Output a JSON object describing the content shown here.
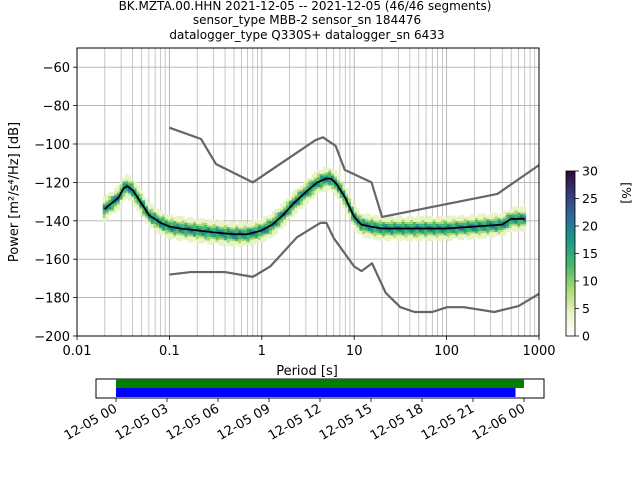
{
  "chart_data": [
    {
      "type": "heatmap",
      "title_lines": [
        "BK.MZTA.00.HHN   2021-12-05 -- 2021-12-05  (46/46 segments)",
        "sensor_type MBB-2 sensor_sn 184476",
        "datalogger_type Q330S+ datalogger_sn 6433"
      ],
      "xlabel": "Period [s]",
      "ylabel": "Power [m²/s⁴/Hz] [dB]",
      "x_scale": "log",
      "xlim": [
        0.01,
        1000
      ],
      "ylim": [
        -200,
        -50
      ],
      "x_ticks": [
        {
          "value": 0.01,
          "label": "0.01"
        },
        {
          "value": 0.1,
          "label": "0.1"
        },
        {
          "value": 1,
          "label": "1"
        },
        {
          "value": 10,
          "label": "10"
        },
        {
          "value": 100,
          "label": "100"
        },
        {
          "value": 1000,
          "label": "1000"
        }
      ],
      "y_ticks": [
        {
          "value": -60,
          "label": "−60"
        },
        {
          "value": -80,
          "label": "−80"
        },
        {
          "value": -100,
          "label": "−100"
        },
        {
          "value": -120,
          "label": "−120"
        },
        {
          "value": -140,
          "label": "−140"
        },
        {
          "value": -160,
          "label": "−160"
        },
        {
          "value": -180,
          "label": "−180"
        },
        {
          "value": -200,
          "label": "−200"
        }
      ],
      "grid": true,
      "colorbar": {
        "label": "[%]",
        "range": [
          0,
          30
        ],
        "ticks": [
          {
            "value": 0,
            "label": "0"
          },
          {
            "value": 5,
            "label": "5"
          },
          {
            "value": 10,
            "label": "10"
          },
          {
            "value": 15,
            "label": "15"
          },
          {
            "value": 20,
            "label": "20"
          },
          {
            "value": 25,
            "label": "25"
          },
          {
            "value": 30,
            "label": "30"
          }
        ],
        "colors": [
          "#ffffff",
          "#e8f3c6",
          "#a9d873",
          "#4cb66a",
          "#1c9b87",
          "#2c6e9c",
          "#383b7c",
          "#2d0a3a"
        ]
      },
      "series": [
        {
          "role": "mean",
          "color": "#000000",
          "x": [
            0.02,
            0.022,
            0.025,
            0.028,
            0.032,
            0.035,
            0.04,
            0.05,
            0.06,
            0.08,
            0.1,
            0.13,
            0.2,
            0.3,
            0.5,
            0.7,
            1.0,
            1.3,
            1.7,
            2.2,
            3.0,
            4.0,
            5.0,
            5.6,
            6.5,
            8,
            10,
            12,
            15,
            20,
            30,
            50,
            70,
            100,
            200,
            400,
            500,
            700
          ],
          "y": [
            -134,
            -132,
            -130,
            -128,
            -123,
            -122,
            -124,
            -131,
            -137,
            -141,
            -143,
            -144,
            -145,
            -146,
            -147,
            -147,
            -145,
            -142,
            -137,
            -131,
            -125,
            -120,
            -118,
            -118,
            -121,
            -128,
            -138,
            -142,
            -143,
            -144,
            -144,
            -144,
            -144,
            -144,
            -143,
            -142,
            -139,
            -139
          ]
        },
        {
          "role": "high-noise-model",
          "color": "#666666",
          "x": [
            0.1,
            0.22,
            0.32,
            0.8,
            3.8,
            4.6,
            6.3,
            7.9,
            15.4,
            20,
            354.8,
            1000
          ],
          "y": [
            -91.5,
            -97.4,
            -110.5,
            -120,
            -98,
            -96.5,
            -101,
            -113.5,
            -120,
            -138,
            -126,
            -111
          ]
        },
        {
          "role": "low-noise-model",
          "color": "#666666",
          "x": [
            0.1,
            0.17,
            0.4,
            0.8,
            1.24,
            2.4,
            4.3,
            5,
            6,
            10,
            12,
            15.6,
            21.9,
            31.6,
            45,
            70,
            101,
            154,
            328,
            600,
            1000
          ],
          "y": [
            -168,
            -166.7,
            -166.7,
            -169.2,
            -163.7,
            -148.6,
            -141.1,
            -141.1,
            -149,
            -163.8,
            -166.2,
            -162.1,
            -177.5,
            -185,
            -187.5,
            -187.5,
            -185,
            -185,
            -187.5,
            -184.4,
            -178
          ]
        }
      ]
    },
    {
      "type": "timeline",
      "x_ticks": [
        "12-05 00",
        "12-05 03",
        "12-05 06",
        "12-05 09",
        "12-05 12",
        "12-05 15",
        "12-05 18",
        "12-05 21",
        "12-06 00"
      ],
      "bars": [
        {
          "color": "#008000",
          "start_hour": 0,
          "end_hour": 24.0
        },
        {
          "color": "#0000ff",
          "start_hour": 0,
          "end_hour": 23.5
        }
      ]
    }
  ]
}
